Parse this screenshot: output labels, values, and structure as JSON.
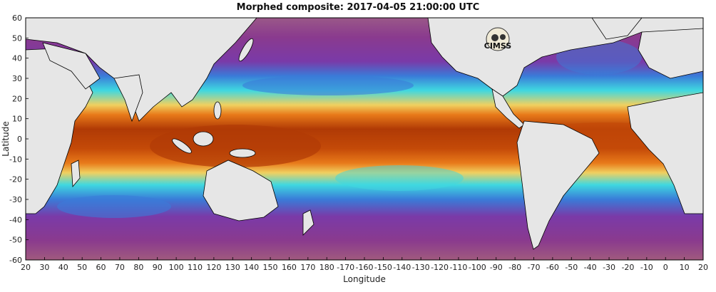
{
  "title": "Morphed composite: 2017-04-05 21:00:00 UTC",
  "logo": {
    "text": "CIMSS"
  },
  "axes": {
    "xlabel": "Longitude",
    "ylabel": "Latitude",
    "x_ticks": [
      "20",
      "30",
      "40",
      "50",
      "60",
      "70",
      "80",
      "90",
      "100",
      "110",
      "120",
      "130",
      "140",
      "150",
      "160",
      "170",
      "180",
      "-170",
      "-160",
      "-150",
      "-140",
      "-130",
      "-120",
      "-110",
      "-100",
      "-90",
      "-80",
      "-70",
      "-60",
      "-50",
      "-40",
      "-30",
      "-20",
      "-10",
      "0",
      "10",
      "20"
    ],
    "y_ticks": [
      "60",
      "50",
      "40",
      "30",
      "20",
      "10",
      "0",
      "-10",
      "-20",
      "-30",
      "-40",
      "-50",
      "-60"
    ],
    "x_range": [
      20,
      380
    ],
    "y_range": [
      -60,
      60
    ]
  },
  "colors": {
    "ocean_dry": "#8a3a8e",
    "ocean_deep": "#a05a7e",
    "moisture_mid": "#3a7bd8",
    "moisture_cyan": "#3fd8e0",
    "moisture_green": "#8ee07a",
    "moisture_yellow": "#f0d060",
    "moisture_orange": "#e87a1a",
    "moisture_max": "#b03a05",
    "land": "#e6e6e6",
    "outline": "#000000"
  },
  "icons": [
    "cimss-logo-icon"
  ]
}
